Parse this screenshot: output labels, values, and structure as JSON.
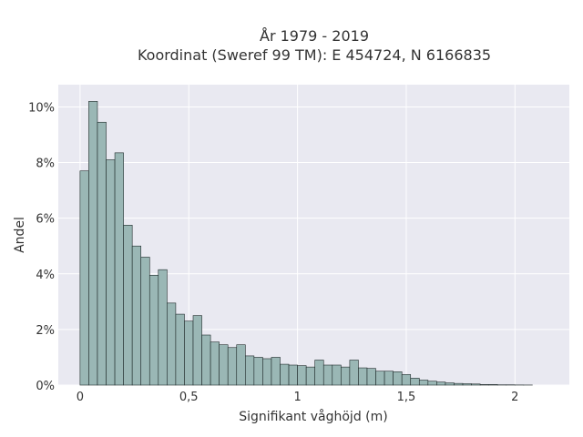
{
  "chart_data": {
    "type": "bar",
    "title_lines": [
      "År 1979 - 2019",
      "Koordinat (Sweref 99 TM): E 454724, N 6166835"
    ],
    "xlabel": "Signifikant våghöjd (m)",
    "ylabel": "Andel",
    "xlim": [
      -0.1,
      2.25
    ],
    "ylim": [
      0,
      10.8
    ],
    "x_ticks": [
      0,
      0.5,
      1,
      1.5,
      2
    ],
    "x_tick_labels": [
      "0",
      "0,5",
      "1",
      "1,5",
      "2"
    ],
    "y_ticks": [
      0,
      2,
      4,
      6,
      8,
      10
    ],
    "y_tick_labels": [
      "0%",
      "2%",
      "4%",
      "6%",
      "8%",
      "10%"
    ],
    "grid": true,
    "bin_start": 0,
    "bin_width": 0.04,
    "values": [
      7.7,
      10.2,
      9.45,
      8.1,
      8.35,
      5.75,
      5.0,
      4.6,
      3.95,
      4.15,
      2.95,
      2.55,
      2.3,
      2.5,
      1.8,
      1.55,
      1.45,
      1.35,
      1.45,
      1.05,
      1.0,
      0.95,
      1.0,
      0.75,
      0.72,
      0.7,
      0.65,
      0.9,
      0.72,
      0.72,
      0.65,
      0.9,
      0.62,
      0.6,
      0.5,
      0.5,
      0.48,
      0.38,
      0.25,
      0.18,
      0.14,
      0.11,
      0.08,
      0.06,
      0.05,
      0.04,
      0.02,
      0.02,
      0.01,
      0.01,
      0.005,
      0.003
    ],
    "colors": {
      "bar_fill": "#9ab7b5",
      "bar_edge": "#1f2a2a",
      "plot_bg": "#e9e9f1",
      "grid": "#ffffff"
    }
  }
}
